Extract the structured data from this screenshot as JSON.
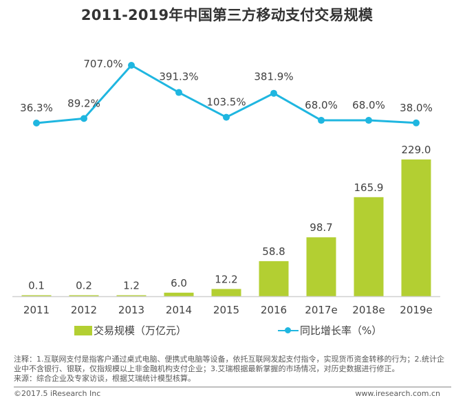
{
  "chart_data": {
    "type": "bar",
    "title": "2011-2019年中国第三方移动支付交易规模",
    "categories": [
      "2011",
      "2012",
      "2013",
      "2014",
      "2015",
      "2016",
      "2017e",
      "2018e",
      "2019e"
    ],
    "series": [
      {
        "name": "交易规模（万亿元）",
        "type": "bar",
        "color": "#b3cf32",
        "values": [
          0.1,
          0.2,
          1.2,
          6.0,
          12.2,
          58.8,
          98.7,
          165.9,
          229.0
        ],
        "labels": [
          "0.1",
          "0.2",
          "1.2",
          "6.0",
          "12.2",
          "58.8",
          "98.7",
          "165.9",
          "229.0"
        ]
      },
      {
        "name": "同比增长率（%）",
        "type": "line",
        "color": "#1fb6e0",
        "values": [
          36.3,
          89.2,
          707.0,
          391.3,
          103.5,
          381.9,
          68.0,
          68.0,
          38.0
        ],
        "labels": [
          "36.3%",
          "89.2%",
          "707.0%",
          "391.3%",
          "103.5%",
          "381.9%",
          "68.0%",
          "68.0%",
          "38.0%"
        ]
      }
    ],
    "xlabel": "",
    "ylabel": "",
    "ylim": [
      0,
      229
    ],
    "grid": false,
    "legend": "bottom"
  },
  "legend": {
    "bar_label": "交易规模（万亿元）",
    "line_label": "同比增长率（%）"
  },
  "notes": {
    "line1": "注释：1.互联网支付是指客户通过桌式电脑、便携式电脑等设备，依托互联网发起支付指令，实现货币资金转移的行为；2.统计企业中不含银行、银联，仅指规模以上非金融机构支付企业；3.艾瑞根据最新掌握的市场情况，对历史数据进行修正。",
    "line2": "来源：综合企业及专家访谈，根据艾瑞统计模型核算。"
  },
  "footer": {
    "copyright": "©2017.5 iResearch Inc",
    "website": "www.iresearch.com.cn"
  }
}
